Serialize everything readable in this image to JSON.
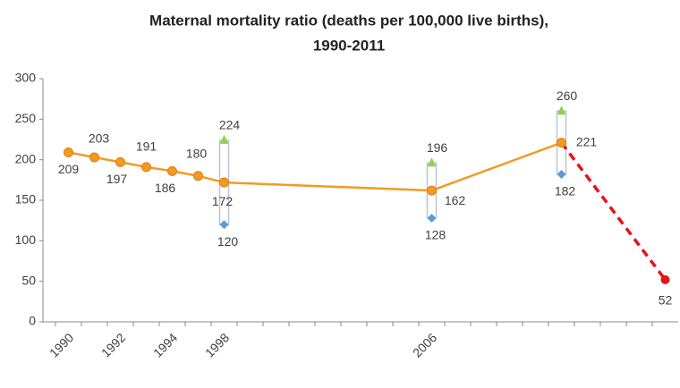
{
  "chart_data": {
    "type": "line",
    "title": [
      "Maternal mortality ratio (deaths per 100,000 live births),",
      "1990-2011"
    ],
    "categories": [
      "1990",
      null,
      "1992",
      null,
      "1994",
      null,
      "1998",
      null,
      null,
      null,
      null,
      null,
      null,
      null,
      "2006",
      null,
      null,
      null,
      null,
      null,
      null,
      null,
      null,
      null
    ],
    "series": [
      {
        "color": "#f39a1f",
        "values": [
          209,
          203,
          197,
          191,
          186,
          180,
          172,
          null,
          null,
          null,
          null,
          null,
          null,
          null,
          162,
          null,
          null,
          null,
          null,
          221,
          null,
          null,
          null,
          null
        ]
      },
      {
        "color": "#5b9bd5",
        "values": [
          null,
          null,
          null,
          null,
          null,
          null,
          120,
          null,
          null,
          null,
          null,
          null,
          null,
          null,
          128,
          null,
          null,
          null,
          null,
          182,
          null,
          null,
          null,
          null
        ]
      },
      {
        "color": "#92d050",
        "values": [
          null,
          null,
          null,
          null,
          null,
          null,
          224,
          null,
          null,
          null,
          null,
          null,
          null,
          null,
          196,
          null,
          null,
          null,
          null,
          260,
          null,
          null,
          null,
          null
        ]
      },
      {
        "color": "#e3151a",
        "dashed": true,
        "values": [
          null,
          null,
          null,
          null,
          null,
          null,
          null,
          null,
          null,
          null,
          null,
          null,
          null,
          null,
          null,
          null,
          null,
          null,
          null,
          221,
          null,
          null,
          null,
          52
        ]
      }
    ],
    "connect_gaps": true,
    "ylim": [
      0,
      300
    ],
    "yticks": [
      0,
      50,
      100,
      150,
      200,
      250,
      300
    ],
    "grid": false
  }
}
